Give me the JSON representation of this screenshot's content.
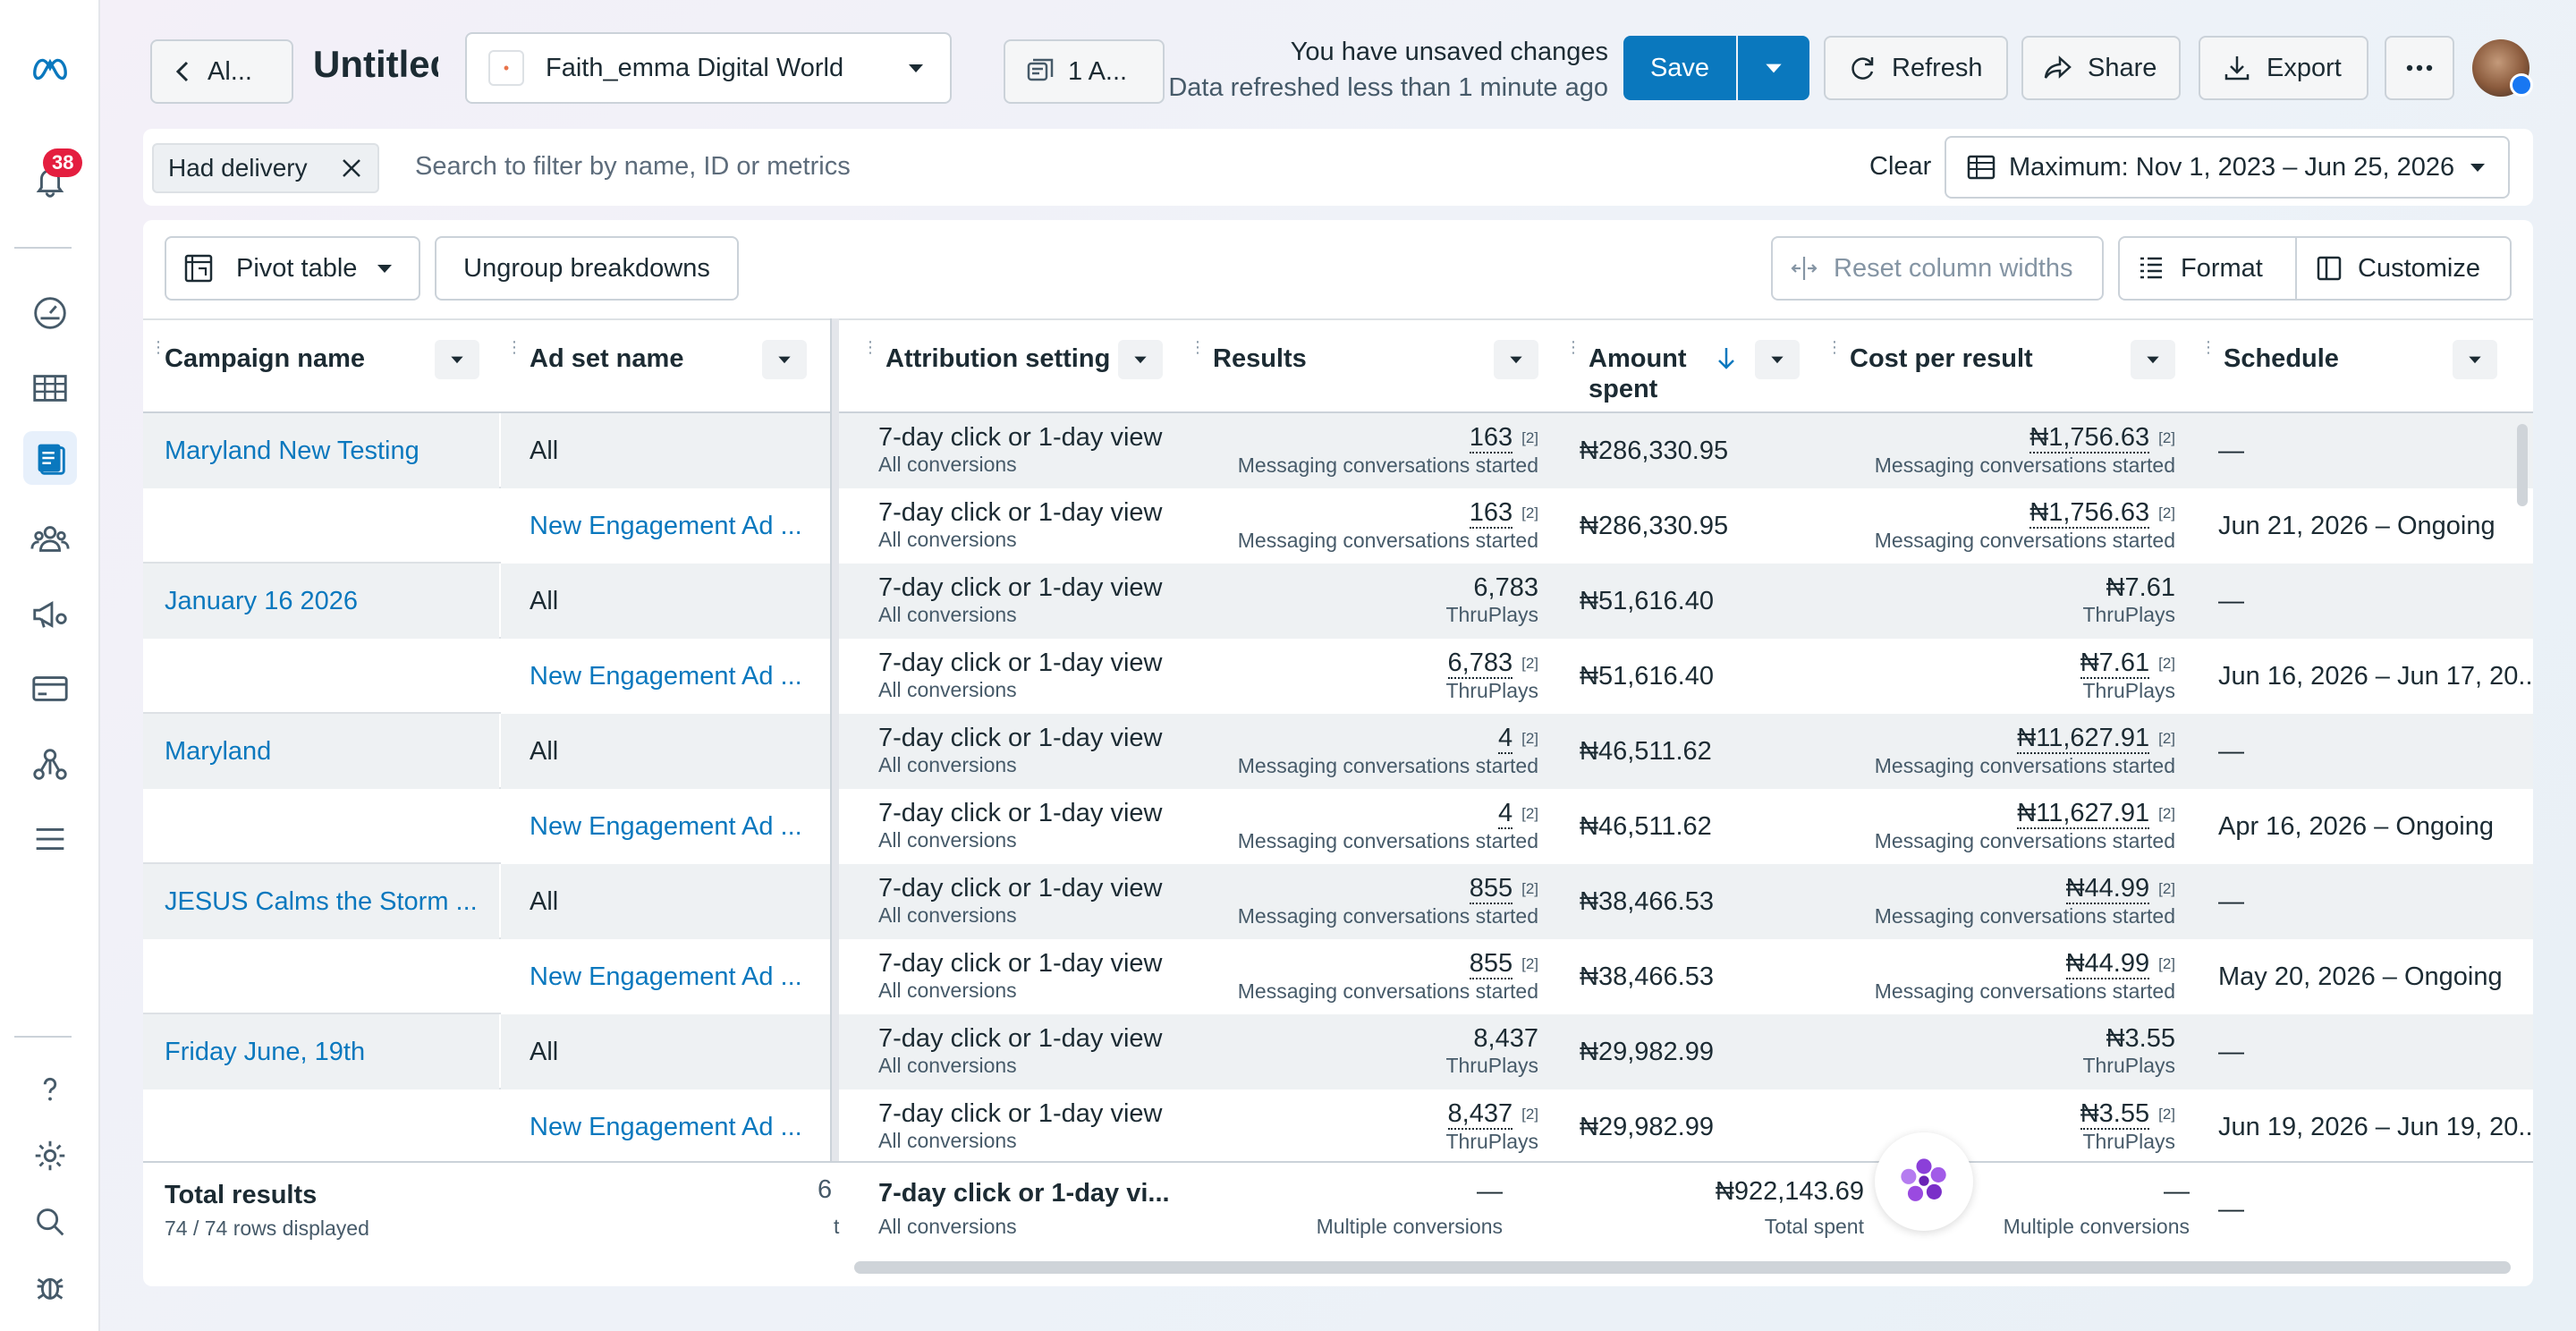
{
  "nav": {
    "notification_count": "38"
  },
  "topbar": {
    "back_label": "Al...",
    "title": "Untitled",
    "account_name": "Faith_emma Digital World",
    "ads_selector": "1 A...",
    "unsaved_title": "You have unsaved changes",
    "unsaved_sub": "Data refreshed less than 1 minute ago",
    "save": "Save",
    "refresh": "Refresh",
    "share": "Share",
    "export": "Export"
  },
  "filters": {
    "chip": "Had delivery",
    "search_placeholder": "Search to filter by name, ID or metrics",
    "clear": "Clear",
    "date_range": "Maximum: Nov 1, 2023 – Jun 25, 2026"
  },
  "toolbar": {
    "pivot": "Pivot table",
    "ungroup": "Ungroup breakdowns",
    "reset": "Reset column widths",
    "format": "Format",
    "customize": "Customize"
  },
  "columns": {
    "campaign": "Campaign name",
    "adset": "Ad set name",
    "attribution": "Attribution setting",
    "results": "Results",
    "amount_1": "Amount",
    "amount_2": "spent",
    "cpr": "Cost per result",
    "schedule": "Schedule"
  },
  "rows": [
    {
      "campaign": "Maryland New Testing",
      "adset": "All",
      "attr": "7-day click or 1-day view",
      "attr_sub": "All conversions",
      "results": "163",
      "results_sup": "[2]",
      "results_sub": "Messaging conversations started",
      "amount": "₦286,330.95",
      "cpr": "₦1,756.63",
      "cpr_sup": "[2]",
      "cpr_sub": "Messaging conversations started",
      "schedule": "—"
    },
    {
      "campaign": "",
      "adset": "New Engagement Ad ...",
      "attr": "7-day click or 1-day view",
      "attr_sub": "All conversions",
      "results": "163",
      "results_sup": "[2]",
      "results_sub": "Messaging conversations started",
      "amount": "₦286,330.95",
      "cpr": "₦1,756.63",
      "cpr_sup": "[2]",
      "cpr_sub": "Messaging conversations started",
      "schedule": "Jun 21, 2026 – Ongoing"
    },
    {
      "campaign": "January 16 2026",
      "adset": "All",
      "attr": "7-day click or 1-day view",
      "attr_sub": "All conversions",
      "results": "6,783",
      "results_sup": "",
      "results_sub": "ThruPlays",
      "amount": "₦51,616.40",
      "cpr": "₦7.61",
      "cpr_sup": "",
      "cpr_sub": "ThruPlays",
      "schedule": "—"
    },
    {
      "campaign": "",
      "adset": "New Engagement Ad ...",
      "attr": "7-day click or 1-day view",
      "attr_sub": "All conversions",
      "results": "6,783",
      "results_sup": "[2]",
      "results_sub": "ThruPlays",
      "amount": "₦51,616.40",
      "cpr": "₦7.61",
      "cpr_sup": "[2]",
      "cpr_sub": "ThruPlays",
      "schedule": "Jun 16, 2026 – Jun 17, 20..."
    },
    {
      "campaign": "Maryland",
      "adset": "All",
      "attr": "7-day click or 1-day view",
      "attr_sub": "All conversions",
      "results": "4",
      "results_sup": "[2]",
      "results_sub": "Messaging conversations started",
      "amount": "₦46,511.62",
      "cpr": "₦11,627.91",
      "cpr_sup": "[2]",
      "cpr_sub": "Messaging conversations started",
      "schedule": "—"
    },
    {
      "campaign": "",
      "adset": "New Engagement Ad ...",
      "attr": "7-day click or 1-day view",
      "attr_sub": "All conversions",
      "results": "4",
      "results_sup": "[2]",
      "results_sub": "Messaging conversations started",
      "amount": "₦46,511.62",
      "cpr": "₦11,627.91",
      "cpr_sup": "[2]",
      "cpr_sub": "Messaging conversations started",
      "schedule": "Apr 16, 2026 – Ongoing"
    },
    {
      "campaign": "JESUS Calms the Storm ...",
      "adset": "All",
      "attr": "7-day click or 1-day view",
      "attr_sub": "All conversions",
      "results": "855",
      "results_sup": "[2]",
      "results_sub": "Messaging conversations started",
      "amount": "₦38,466.53",
      "cpr": "₦44.99",
      "cpr_sup": "[2]",
      "cpr_sub": "Messaging conversations started",
      "schedule": "—"
    },
    {
      "campaign": "",
      "adset": "New Engagement Ad ...",
      "attr": "7-day click or 1-day view",
      "attr_sub": "All conversions",
      "results": "855",
      "results_sup": "[2]",
      "results_sub": "Messaging conversations started",
      "amount": "₦38,466.53",
      "cpr": "₦44.99",
      "cpr_sup": "[2]",
      "cpr_sub": "Messaging conversations started",
      "schedule": "May 20, 2026 – Ongoing"
    },
    {
      "campaign": "Friday June, 19th",
      "adset": "All",
      "attr": "7-day click or 1-day view",
      "attr_sub": "All conversions",
      "results": "8,437",
      "results_sup": "",
      "results_sub": "ThruPlays",
      "amount": "₦29,982.99",
      "cpr": "₦3.55",
      "cpr_sup": "",
      "cpr_sub": "ThruPlays",
      "schedule": "—"
    },
    {
      "campaign": "",
      "adset": "New Engagement Ad ...",
      "attr": "7-day click or 1-day view",
      "attr_sub": "All conversions",
      "results": "8,437",
      "results_sup": "[2]",
      "results_sub": "ThruPlays",
      "amount": "₦29,982.99",
      "cpr": "₦3.55",
      "cpr_sup": "[2]",
      "cpr_sub": "ThruPlays",
      "schedule": "Jun 19, 2026 – Jun 19, 20..."
    }
  ],
  "totals": {
    "label": "Total results",
    "rows_displayed": "74 / 74 rows displayed",
    "partial_a": "6",
    "partial_b": "t",
    "attr": "7-day click or 1-day vi...",
    "attr_sub": "All conversions",
    "results": "—",
    "results_sub": "Multiple conversions",
    "amount": "₦922,143.69",
    "amount_sub": "Total spent",
    "cpr": "—",
    "cpr_sub": "Multiple conversions",
    "schedule": "—"
  }
}
